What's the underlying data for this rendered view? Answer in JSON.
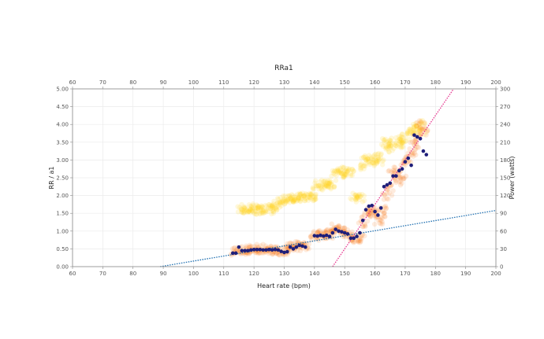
{
  "chart_data": {
    "type": "scatter",
    "title": "RRa1",
    "xlabel": "Heart rate (bpm)",
    "ylabel": "RR / a1",
    "y2label": "Power (watts)",
    "xlim": [
      60,
      200
    ],
    "ylim": [
      0,
      5
    ],
    "y2lim": [
      0,
      300
    ],
    "x_ticks": [
      "60",
      "70",
      "80",
      "90",
      "100",
      "110",
      "120",
      "130",
      "140",
      "150",
      "160",
      "170",
      "180",
      "190",
      "200"
    ],
    "y_ticks": [
      "0.00",
      "0.50",
      "1.00",
      "1.50",
      "2.00",
      "2.50",
      "3.00",
      "3.50",
      "4.00",
      "4.50",
      "5.00"
    ],
    "y2_ticks": [
      "0",
      "30",
      "60",
      "90",
      "120",
      "150",
      "180",
      "210",
      "240",
      "270",
      "300"
    ],
    "grid": true,
    "colors": {
      "power_cloud": "#FFD21F",
      "rr_cloud": "#F7832A",
      "a1_points": "#1F1F7A",
      "blue_trend": "#1F6FB0",
      "pink_trend": "#E6368F",
      "axis": "#888888",
      "grid": "#EBEBEB"
    },
    "series": [
      {
        "kind": "points",
        "axis": "left",
        "color": "#1F1F7A",
        "values": [
          [
            113,
            0.38
          ],
          [
            114,
            0.38
          ],
          [
            115,
            0.55
          ],
          [
            116,
            0.45
          ],
          [
            117,
            0.45
          ],
          [
            118,
            0.45
          ],
          [
            119,
            0.47
          ],
          [
            120,
            0.48
          ],
          [
            121,
            0.48
          ],
          [
            122,
            0.48
          ],
          [
            123,
            0.47
          ],
          [
            124,
            0.47
          ],
          [
            125,
            0.48
          ],
          [
            126,
            0.47
          ],
          [
            127,
            0.48
          ],
          [
            128,
            0.47
          ],
          [
            129,
            0.43
          ],
          [
            130,
            0.4
          ],
          [
            131,
            0.42
          ],
          [
            132,
            0.55
          ],
          [
            133,
            0.5
          ],
          [
            134,
            0.55
          ],
          [
            135,
            0.6
          ],
          [
            136,
            0.58
          ],
          [
            137,
            0.55
          ],
          [
            140,
            0.87
          ],
          [
            141,
            0.86
          ],
          [
            142,
            0.88
          ],
          [
            143,
            0.86
          ],
          [
            144,
            0.88
          ],
          [
            145,
            0.85
          ],
          [
            146,
            0.95
          ],
          [
            147,
            1.05
          ],
          [
            148,
            1.0
          ],
          [
            149,
            0.98
          ],
          [
            150,
            0.95
          ],
          [
            151,
            0.92
          ],
          [
            152,
            0.8
          ],
          [
            153,
            0.8
          ],
          [
            154,
            0.85
          ],
          [
            155,
            0.95
          ],
          [
            156,
            1.3
          ],
          [
            157,
            1.6
          ],
          [
            158,
            1.7
          ],
          [
            159,
            1.72
          ],
          [
            160,
            1.55
          ],
          [
            161,
            1.45
          ],
          [
            162,
            1.65
          ],
          [
            163,
            2.25
          ],
          [
            164,
            2.3
          ],
          [
            165,
            2.35
          ],
          [
            166,
            2.55
          ],
          [
            167,
            2.55
          ],
          [
            168,
            2.7
          ],
          [
            169,
            2.75
          ],
          [
            170,
            2.95
          ],
          [
            171,
            3.05
          ],
          [
            172,
            2.85
          ],
          [
            173,
            3.7
          ],
          [
            174,
            3.65
          ],
          [
            175,
            3.6
          ],
          [
            176,
            3.25
          ],
          [
            177,
            3.15
          ]
        ]
      },
      {
        "kind": "cloud",
        "axis": "right",
        "color": "#FFD21F",
        "values": [
          [
            116,
            96
          ],
          [
            117,
            98
          ],
          [
            118,
            95
          ],
          [
            119,
            97
          ],
          [
            120,
            96
          ],
          [
            121,
            99
          ],
          [
            122,
            95
          ],
          [
            123,
            97
          ],
          [
            124,
            96
          ],
          [
            125,
            98
          ],
          [
            126,
            95
          ],
          [
            127,
            100
          ],
          [
            128,
            107
          ],
          [
            129,
            112
          ],
          [
            130,
            113
          ],
          [
            131,
            112
          ],
          [
            132,
            114
          ],
          [
            133,
            115
          ],
          [
            134,
            117
          ],
          [
            135,
            116
          ],
          [
            136,
            118
          ],
          [
            137,
            115
          ],
          [
            138,
            120
          ],
          [
            139,
            118
          ],
          [
            140,
            117
          ],
          [
            141,
            138
          ],
          [
            142,
            136
          ],
          [
            143,
            140
          ],
          [
            144,
            138
          ],
          [
            145,
            141
          ],
          [
            146,
            139
          ],
          [
            147,
            158
          ],
          [
            148,
            160
          ],
          [
            149,
            157
          ],
          [
            150,
            162
          ],
          [
            151,
            160
          ],
          [
            152,
            158
          ],
          [
            153,
            118
          ],
          [
            154,
            120
          ],
          [
            155,
            116
          ],
          [
            156,
            170
          ],
          [
            157,
            178
          ],
          [
            158,
            182
          ],
          [
            159,
            180
          ],
          [
            160,
            176
          ],
          [
            161,
            185
          ],
          [
            162,
            178
          ],
          [
            163,
            205
          ],
          [
            164,
            210
          ],
          [
            165,
            200
          ],
          [
            166,
            208
          ],
          [
            167,
            212
          ],
          [
            168,
            206
          ],
          [
            169,
            215
          ],
          [
            170,
            218
          ],
          [
            171,
            228
          ],
          [
            172,
            230
          ],
          [
            173,
            232
          ],
          [
            174,
            236
          ],
          [
            175,
            240
          ],
          [
            176,
            228
          ]
        ]
      },
      {
        "kind": "cloud",
        "axis": "left",
        "color": "#F7832A",
        "values": [
          [
            114,
            0.42
          ],
          [
            115,
            0.45
          ],
          [
            116,
            0.48
          ],
          [
            117,
            0.47
          ],
          [
            118,
            0.45
          ],
          [
            119,
            0.5
          ],
          [
            120,
            0.48
          ],
          [
            121,
            0.46
          ],
          [
            122,
            0.52
          ],
          [
            123,
            0.47
          ],
          [
            124,
            0.48
          ],
          [
            125,
            0.5
          ],
          [
            126,
            0.45
          ],
          [
            127,
            0.47
          ],
          [
            128,
            0.48
          ],
          [
            129,
            0.44
          ],
          [
            130,
            0.42
          ],
          [
            131,
            0.5
          ],
          [
            132,
            0.58
          ],
          [
            133,
            0.6
          ],
          [
            134,
            0.55
          ],
          [
            135,
            0.62
          ],
          [
            136,
            0.58
          ],
          [
            137,
            0.55
          ],
          [
            140,
            0.85
          ],
          [
            141,
            0.9
          ],
          [
            142,
            0.88
          ],
          [
            143,
            0.92
          ],
          [
            144,
            0.95
          ],
          [
            145,
            0.9
          ],
          [
            146,
            1.0
          ],
          [
            147,
            1.1
          ],
          [
            148,
            1.05
          ],
          [
            149,
            1.02
          ],
          [
            150,
            0.98
          ],
          [
            151,
            0.95
          ],
          [
            152,
            0.85
          ],
          [
            153,
            0.8
          ],
          [
            154,
            0.78
          ],
          [
            155,
            0.82
          ],
          [
            156,
            1.2
          ],
          [
            157,
            1.45
          ],
          [
            158,
            1.6
          ],
          [
            159,
            1.55
          ],
          [
            160,
            1.5
          ],
          [
            161,
            1.3
          ],
          [
            162,
            1.4
          ],
          [
            163,
            1.6
          ],
          [
            164,
            2.0
          ],
          [
            165,
            2.2
          ],
          [
            166,
            2.6
          ],
          [
            167,
            2.7
          ],
          [
            168,
            2.4
          ],
          [
            169,
            2.5
          ],
          [
            170,
            2.9
          ],
          [
            171,
            3.0
          ],
          [
            172,
            3.2
          ],
          [
            173,
            3.4
          ],
          [
            174,
            3.6
          ],
          [
            175,
            4.0
          ],
          [
            176,
            3.8
          ]
        ]
      },
      {
        "kind": "trend",
        "axis": "left",
        "color": "#1F6FB0",
        "values": [
          [
            89,
            0.0
          ],
          [
            200,
            1.58
          ]
        ]
      },
      {
        "kind": "trend",
        "axis": "left",
        "color": "#E6368F",
        "values": [
          [
            146,
            0.0
          ],
          [
            186,
            5.0
          ]
        ]
      }
    ]
  }
}
